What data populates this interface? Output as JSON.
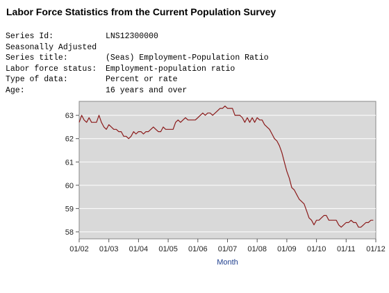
{
  "header": {
    "title": "Labor Force Statistics from the Current Population Survey"
  },
  "series_info": [
    {
      "key": "Series Id:",
      "value": "LNS12300000"
    },
    {
      "key": "Seasonally Adjusted",
      "value": ""
    },
    {
      "key": "Series title:",
      "value": "(Seas) Employment-Population Ratio"
    },
    {
      "key": "Labor force status:",
      "value": "Employment-population ratio"
    },
    {
      "key": "Type of data:",
      "value": "Percent or rate"
    },
    {
      "key": "Age:",
      "value": "16 years and over"
    }
  ],
  "colors": {
    "plot_background": "#d9d9d9",
    "line": "#8b1a1a",
    "axis_title": "#1f3f8f"
  },
  "chart_data": {
    "type": "line",
    "title": "",
    "xlabel": "Month",
    "ylabel": "",
    "xlim": [
      "01/02",
      "01/12"
    ],
    "ylim": [
      57.7,
      63.6
    ],
    "grid": "horizontal",
    "x_tick_labels": [
      "01/02",
      "01/03",
      "01/04",
      "01/05",
      "01/06",
      "01/07",
      "01/08",
      "01/09",
      "01/10",
      "01/11",
      "01/12"
    ],
    "y_tick_labels": [
      "58",
      "59",
      "60",
      "61",
      "62",
      "63"
    ],
    "y_ticks": [
      58,
      59,
      60,
      61,
      62,
      63
    ],
    "series": [
      {
        "x": [
          "2002-01",
          "2002-02",
          "2002-03",
          "2002-04",
          "2002-05",
          "2002-06",
          "2002-07",
          "2002-08",
          "2002-09",
          "2002-10",
          "2002-11",
          "2002-12",
          "2003-01",
          "2003-02",
          "2003-03",
          "2003-04",
          "2003-05",
          "2003-06",
          "2003-07",
          "2003-08",
          "2003-09",
          "2003-10",
          "2003-11",
          "2003-12",
          "2004-01",
          "2004-02",
          "2004-03",
          "2004-04",
          "2004-05",
          "2004-06",
          "2004-07",
          "2004-08",
          "2004-09",
          "2004-10",
          "2004-11",
          "2004-12",
          "2005-01",
          "2005-02",
          "2005-03",
          "2005-04",
          "2005-05",
          "2005-06",
          "2005-07",
          "2005-08",
          "2005-09",
          "2005-10",
          "2005-11",
          "2005-12",
          "2006-01",
          "2006-02",
          "2006-03",
          "2006-04",
          "2006-05",
          "2006-06",
          "2006-07",
          "2006-08",
          "2006-09",
          "2006-10",
          "2006-11",
          "2006-12",
          "2007-01",
          "2007-02",
          "2007-03",
          "2007-04",
          "2007-05",
          "2007-06",
          "2007-07",
          "2007-08",
          "2007-09",
          "2007-10",
          "2007-11",
          "2007-12",
          "2008-01",
          "2008-02",
          "2008-03",
          "2008-04",
          "2008-05",
          "2008-06",
          "2008-07",
          "2008-08",
          "2008-09",
          "2008-10",
          "2008-11",
          "2008-12",
          "2009-01",
          "2009-02",
          "2009-03",
          "2009-04",
          "2009-05",
          "2009-06",
          "2009-07",
          "2009-08",
          "2009-09",
          "2009-10",
          "2009-11",
          "2009-12",
          "2010-01",
          "2010-02",
          "2010-03",
          "2010-04",
          "2010-05",
          "2010-06",
          "2010-07",
          "2010-08",
          "2010-09",
          "2010-10",
          "2010-11",
          "2010-12",
          "2011-01",
          "2011-02",
          "2011-03",
          "2011-04",
          "2011-05",
          "2011-06",
          "2011-07",
          "2011-08",
          "2011-09",
          "2011-10",
          "2011-11",
          "2011-12"
        ],
        "values": [
          62.7,
          63.0,
          62.8,
          62.7,
          62.9,
          62.7,
          62.7,
          62.7,
          63.0,
          62.7,
          62.5,
          62.4,
          62.6,
          62.5,
          62.4,
          62.4,
          62.3,
          62.3,
          62.1,
          62.1,
          62.0,
          62.1,
          62.3,
          62.2,
          62.3,
          62.3,
          62.2,
          62.3,
          62.3,
          62.4,
          62.5,
          62.4,
          62.3,
          62.3,
          62.5,
          62.4,
          62.4,
          62.4,
          62.4,
          62.7,
          62.8,
          62.7,
          62.8,
          62.9,
          62.8,
          62.8,
          62.8,
          62.8,
          62.9,
          63.0,
          63.1,
          63.0,
          63.1,
          63.1,
          63.0,
          63.1,
          63.2,
          63.3,
          63.3,
          63.4,
          63.3,
          63.3,
          63.3,
          63.0,
          63.0,
          63.0,
          62.9,
          62.7,
          62.9,
          62.7,
          62.9,
          62.7,
          62.9,
          62.8,
          62.8,
          62.6,
          62.5,
          62.4,
          62.2,
          62.0,
          61.9,
          61.7,
          61.4,
          61.0,
          60.6,
          60.3,
          59.9,
          59.8,
          59.6,
          59.4,
          59.3,
          59.2,
          58.9,
          58.6,
          58.5,
          58.3,
          58.5,
          58.5,
          58.6,
          58.7,
          58.7,
          58.5,
          58.5,
          58.5,
          58.5,
          58.3,
          58.2,
          58.3,
          58.4,
          58.4,
          58.5,
          58.4,
          58.4,
          58.2,
          58.2,
          58.3,
          58.4,
          58.4,
          58.5,
          58.5
        ]
      }
    ]
  }
}
